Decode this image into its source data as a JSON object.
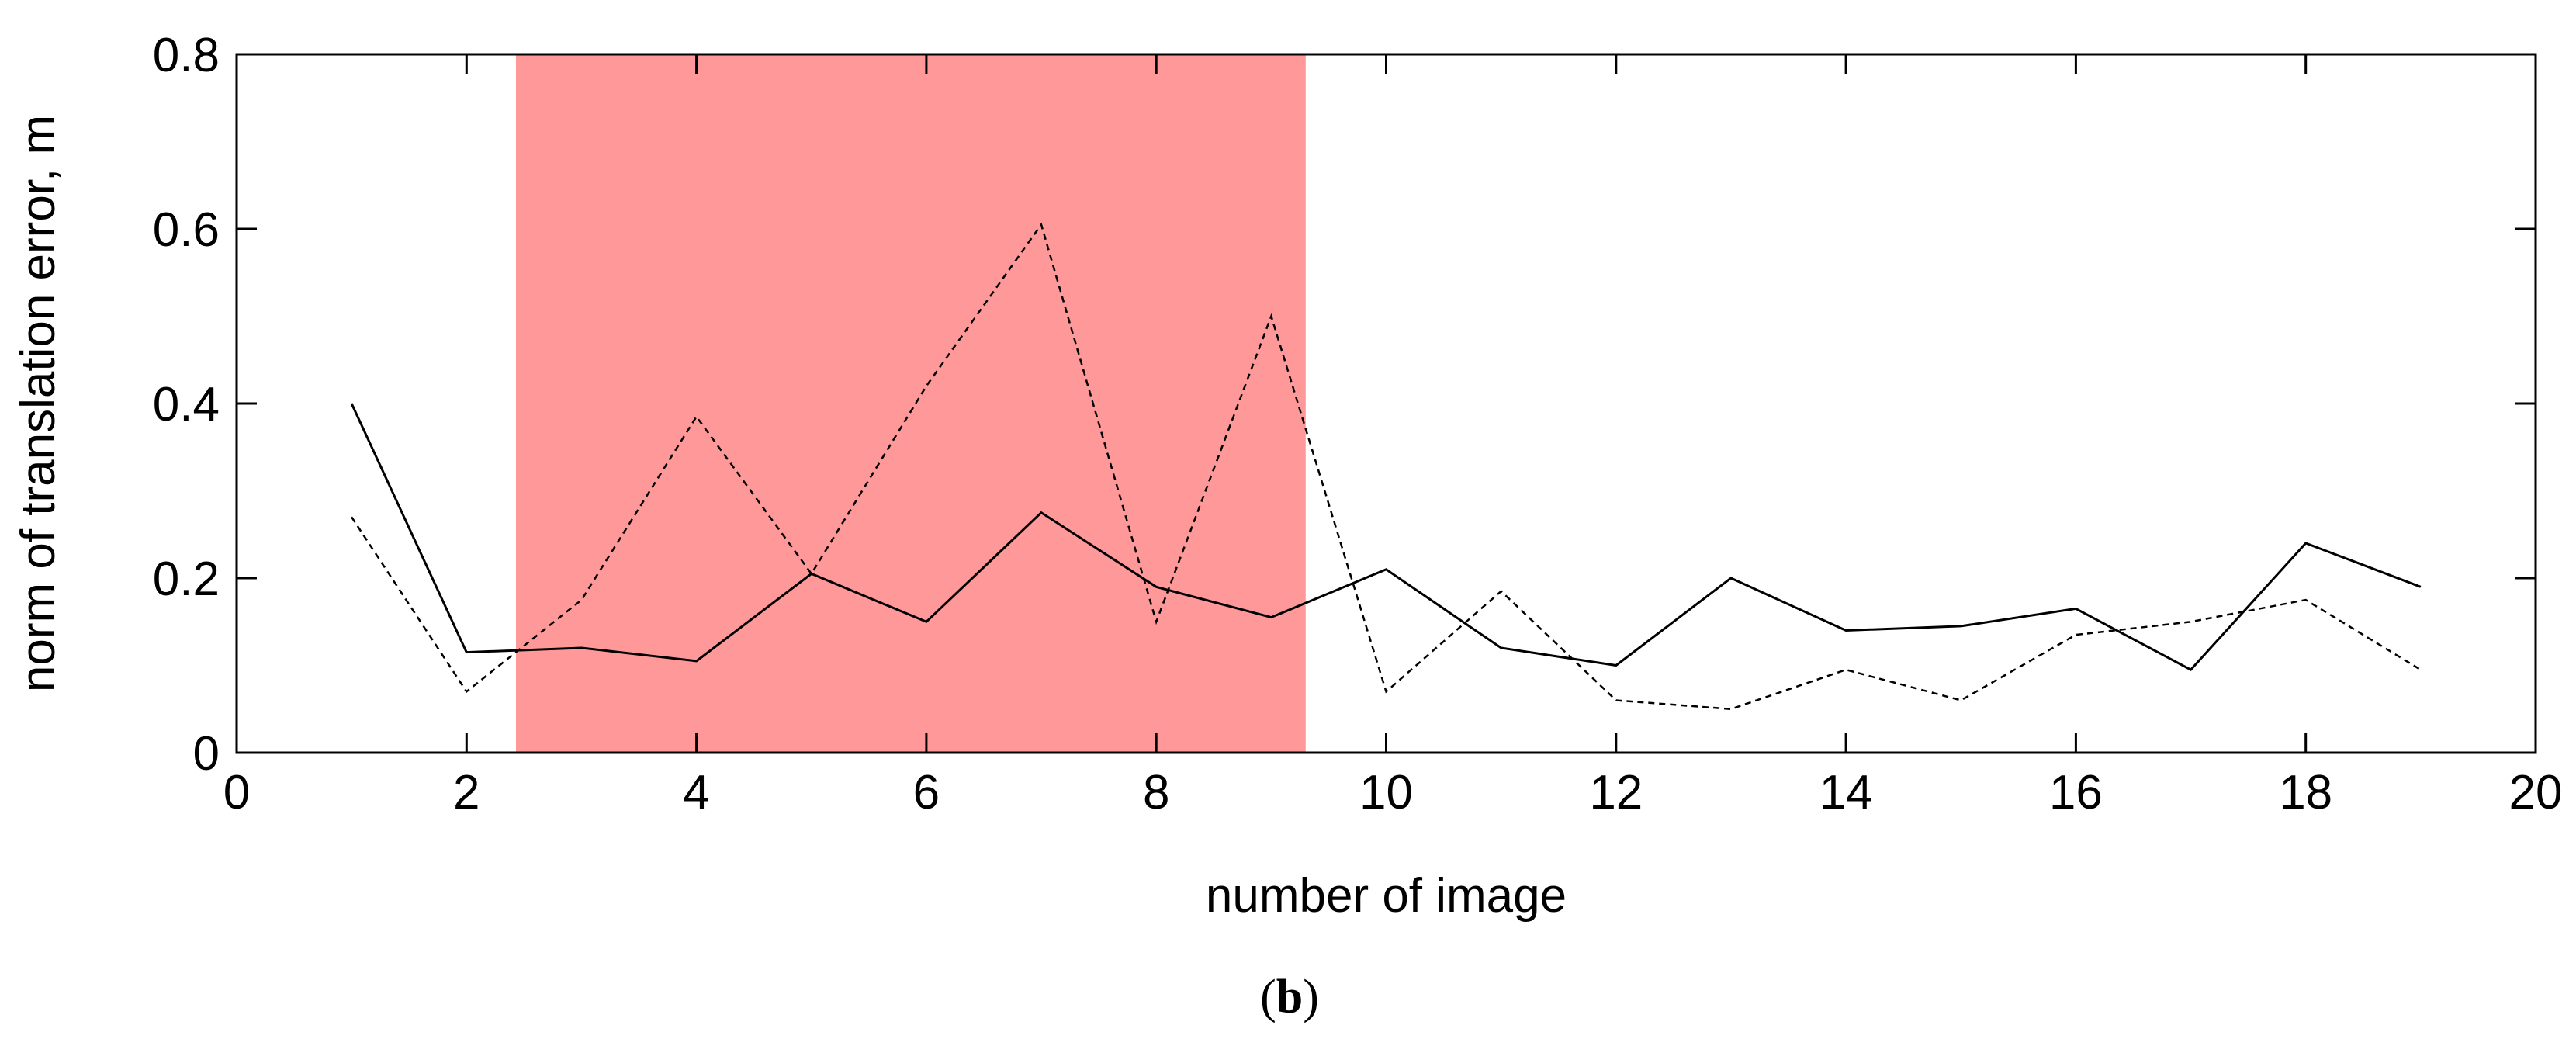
{
  "chart_data": {
    "type": "line",
    "xlabel": "number of image",
    "ylabel": "norm of translation error, m",
    "xlim": [
      0,
      20
    ],
    "ylim": [
      0,
      0.8
    ],
    "x_ticks": [
      0,
      2,
      4,
      6,
      8,
      10,
      12,
      14,
      16,
      18,
      20
    ],
    "y_ticks": [
      0,
      0.2,
      0.4,
      0.6,
      0.8
    ],
    "x_tick_labels": [
      "0",
      "2",
      "4",
      "6",
      "8",
      "10",
      "12",
      "14",
      "16",
      "18",
      "20"
    ],
    "y_tick_labels": [
      "0",
      "0.2",
      "0.4",
      "0.6",
      "0.8"
    ],
    "grid": false,
    "legend": "none",
    "highlight_region": {
      "x_start": 2.43,
      "x_end": 9.3,
      "color": "#ff9999"
    },
    "x": [
      1,
      2,
      3,
      4,
      5,
      6,
      7,
      8,
      9,
      10,
      11,
      12,
      13,
      14,
      15,
      16,
      17,
      18,
      19
    ],
    "series": [
      {
        "style": "solid",
        "color": "#000000",
        "values": [
          0.4,
          0.115,
          0.12,
          0.105,
          0.205,
          0.15,
          0.275,
          0.19,
          0.155,
          0.21,
          0.12,
          0.1,
          0.2,
          0.14,
          0.145,
          0.165,
          0.095,
          0.24,
          0.19
        ]
      },
      {
        "style": "dashed",
        "color": "#000000",
        "values": [
          0.27,
          0.07,
          0.175,
          0.385,
          0.205,
          0.42,
          0.605,
          0.15,
          0.5,
          0.07,
          0.185,
          0.06,
          0.05,
          0.095,
          0.06,
          0.135,
          0.15,
          0.175,
          0.095
        ]
      }
    ]
  },
  "caption": {
    "open_paren": "(",
    "letter": "b",
    "close_paren": ")"
  }
}
